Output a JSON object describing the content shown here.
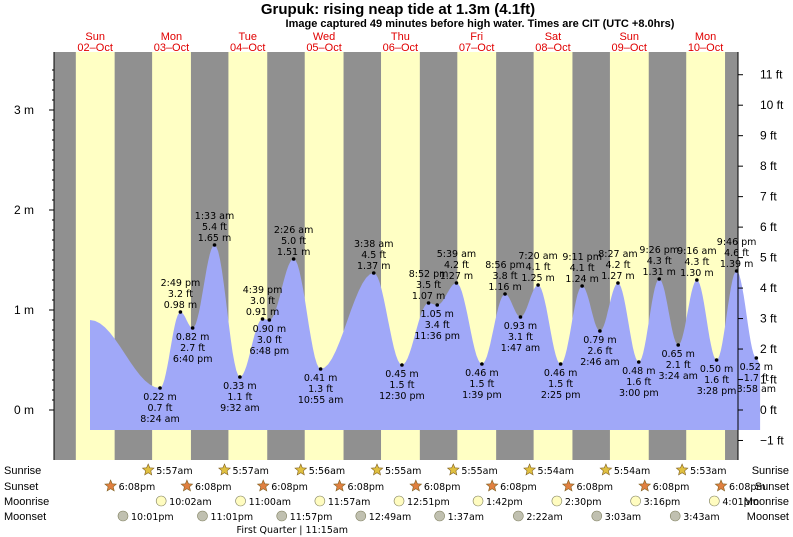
{
  "chart_data": {
    "type": "area",
    "title": "Grupuk: rising  neap tide at 1.3m (4.1ft)",
    "subtitle": "Image captured 49 minutes before high water. Times are CIT (UTC +8.0hrs)",
    "y_left_unit": "m",
    "y_left_ticks": [
      "0 m",
      "1 m",
      "2 m",
      "3 m"
    ],
    "y_right_ticks": [
      "−1 ft",
      "0 ft",
      "1 ft",
      "2 ft",
      "3 ft",
      "4 ft",
      "5 ft",
      "6 ft",
      "7 ft",
      "8 ft",
      "9 ft",
      "10 ft",
      "11 ft"
    ],
    "days": [
      {
        "name": "Sun",
        "date": "02–Oct"
      },
      {
        "name": "Mon",
        "date": "03–Oct"
      },
      {
        "name": "Tue",
        "date": "04–Oct"
      },
      {
        "name": "Wed",
        "date": "05–Oct"
      },
      {
        "name": "Thu",
        "date": "06–Oct"
      },
      {
        "name": "Fri",
        "date": "07–Oct"
      },
      {
        "name": "Sat",
        "date": "08–Oct"
      },
      {
        "name": "Sun",
        "date": "09–Oct"
      },
      {
        "name": "Mon",
        "date": "10–Oct"
      }
    ],
    "tides": [
      {
        "time": "8:24 am",
        "m": "0.22 m",
        "ft": "0.7 ft",
        "h": 0.22,
        "day": 1,
        "hour": 8.4,
        "type": "low"
      },
      {
        "time": "2:49 pm",
        "m": "0.98 m",
        "ft": "3.2 ft",
        "h": 0.98,
        "day": 1,
        "hour": 14.82,
        "type": "high"
      },
      {
        "time": "6:40 pm",
        "m": "0.82 m",
        "ft": "2.7 ft",
        "h": 0.82,
        "day": 1,
        "hour": 18.67,
        "type": "low"
      },
      {
        "time": "1:33 am",
        "m": "1.65 m",
        "ft": "5.4 ft",
        "h": 1.65,
        "day": 2,
        "hour": 1.55,
        "type": "high"
      },
      {
        "time": "9:32 am",
        "m": "0.33 m",
        "ft": "1.1 ft",
        "h": 0.33,
        "day": 2,
        "hour": 9.53,
        "type": "low"
      },
      {
        "time": "4:39 pm",
        "m": "0.91 m",
        "ft": "3.0 ft",
        "h": 0.91,
        "day": 2,
        "hour": 16.65,
        "type": "high"
      },
      {
        "time": "6:48 pm",
        "m": "0.90 m",
        "ft": "3.0 ft",
        "h": 0.9,
        "day": 2,
        "hour": 18.8,
        "type": "low"
      },
      {
        "time": "2:26 am",
        "m": "1.51 m",
        "ft": "5.0 ft",
        "h": 1.51,
        "day": 3,
        "hour": 2.43,
        "type": "high"
      },
      {
        "time": "10:55 am",
        "m": "0.41 m",
        "ft": "1.3 ft",
        "h": 0.41,
        "day": 3,
        "hour": 10.92,
        "type": "low"
      },
      {
        "time": "3:38 am",
        "m": "1.37 m",
        "ft": "4.5 ft",
        "h": 1.37,
        "day": 4,
        "hour": 3.63,
        "type": "high"
      },
      {
        "time": "12:30 pm",
        "m": "0.45 m",
        "ft": "1.5 ft",
        "h": 0.45,
        "day": 4,
        "hour": 12.5,
        "type": "low"
      },
      {
        "time": "8:52 pm",
        "m": "1.07 m",
        "ft": "3.5 ft",
        "h": 1.07,
        "day": 4,
        "hour": 20.87,
        "type": "high"
      },
      {
        "time": "11:36 pm",
        "m": "1.05 m",
        "ft": "3.4 ft",
        "h": 1.05,
        "day": 4,
        "hour": 23.6,
        "type": "low"
      },
      {
        "time": "5:39 am",
        "m": "1.27 m",
        "ft": "4.2 ft",
        "h": 1.27,
        "day": 5,
        "hour": 5.65,
        "type": "high"
      },
      {
        "time": "1:39 pm",
        "m": "0.46 m",
        "ft": "1.5 ft",
        "h": 0.46,
        "day": 5,
        "hour": 13.65,
        "type": "low"
      },
      {
        "time": "8:56 pm",
        "m": "1.16 m",
        "ft": "3.8 ft",
        "h": 1.16,
        "day": 5,
        "hour": 20.93,
        "type": "high"
      },
      {
        "time": "1:47 am",
        "m": "0.93 m",
        "ft": "3.1 ft",
        "h": 0.93,
        "day": 6,
        "hour": 1.78,
        "type": "low"
      },
      {
        "time": "7:20 am",
        "m": "1.25 m",
        "ft": "4.1 ft",
        "h": 1.25,
        "day": 6,
        "hour": 7.33,
        "type": "high"
      },
      {
        "time": "2:25 pm",
        "m": "0.46 m",
        "ft": "1.5 ft",
        "h": 0.46,
        "day": 6,
        "hour": 14.42,
        "type": "low"
      },
      {
        "time": "9:11 pm",
        "m": "1.24 m",
        "ft": "4.1 ft",
        "h": 1.24,
        "day": 6,
        "hour": 21.18,
        "type": "high"
      },
      {
        "time": "2:46 am",
        "m": "0.79 m",
        "ft": "2.6 ft",
        "h": 0.79,
        "day": 7,
        "hour": 2.77,
        "type": "low"
      },
      {
        "time": "8:27 am",
        "m": "1.27 m",
        "ft": "4.2 ft",
        "h": 1.27,
        "day": 7,
        "hour": 8.45,
        "type": "high"
      },
      {
        "time": "3:00 pm",
        "m": "0.48 m",
        "ft": "1.6 ft",
        "h": 0.48,
        "day": 7,
        "hour": 15.0,
        "type": "low"
      },
      {
        "time": "9:26 pm",
        "m": "1.31 m",
        "ft": "4.3 ft",
        "h": 1.31,
        "day": 7,
        "hour": 21.43,
        "type": "high"
      },
      {
        "time": "3:24 am",
        "m": "0.65 m",
        "ft": "2.1 ft",
        "h": 0.65,
        "day": 8,
        "hour": 3.4,
        "type": "low"
      },
      {
        "time": "9:16 am",
        "m": "1.30 m",
        "ft": "4.3 ft",
        "h": 1.3,
        "day": 8,
        "hour": 9.27,
        "type": "high"
      },
      {
        "time": "3:28 pm",
        "m": "0.50 m",
        "ft": "1.6 ft",
        "h": 0.5,
        "day": 8,
        "hour": 15.47,
        "type": "low"
      },
      {
        "time": "9:46 pm",
        "m": "1.39 m",
        "ft": "4.6 ft",
        "h": 1.39,
        "day": 8,
        "hour": 21.77,
        "type": "high"
      },
      {
        "time": "3:58 am",
        "m": "0.52 m",
        "ft": "1.7 ft",
        "h": 0.52,
        "day": 9,
        "hour": 3.97,
        "type": "low"
      }
    ],
    "sun_moon": {
      "row_labels": [
        "Sunrise",
        "Sunset",
        "Moonrise",
        "Moonset"
      ],
      "sunrise": [
        {
          "day": 1,
          "hour": 5.95,
          "time": "5:57am"
        },
        {
          "day": 2,
          "hour": 5.95,
          "time": "5:57am"
        },
        {
          "day": 3,
          "hour": 5.93,
          "time": "5:56am"
        },
        {
          "day": 4,
          "hour": 5.92,
          "time": "5:55am"
        },
        {
          "day": 5,
          "hour": 5.92,
          "time": "5:55am"
        },
        {
          "day": 6,
          "hour": 5.9,
          "time": "5:54am"
        },
        {
          "day": 7,
          "hour": 5.9,
          "time": "5:54am"
        },
        {
          "day": 8,
          "hour": 5.88,
          "time": "5:53am"
        }
      ],
      "sunset": [
        {
          "day": 0,
          "hour": 18.13,
          "time": "6:08pm"
        },
        {
          "day": 1,
          "hour": 18.13,
          "time": "6:08pm"
        },
        {
          "day": 2,
          "hour": 18.13,
          "time": "6:08pm"
        },
        {
          "day": 3,
          "hour": 18.13,
          "time": "6:08pm"
        },
        {
          "day": 4,
          "hour": 18.13,
          "time": "6:08pm"
        },
        {
          "day": 5,
          "hour": 18.13,
          "time": "6:08pm"
        },
        {
          "day": 6,
          "hour": 18.13,
          "time": "6:08pm"
        },
        {
          "day": 7,
          "hour": 18.13,
          "time": "6:08pm"
        },
        {
          "day": 8,
          "hour": 18.13,
          "time": "6:08pm"
        }
      ],
      "moonrise": [
        {
          "day": 1,
          "hour": 10.03,
          "time": "10:02am"
        },
        {
          "day": 2,
          "hour": 11.0,
          "time": "11:00am"
        },
        {
          "day": 3,
          "hour": 11.95,
          "time": "11:57am"
        },
        {
          "day": 4,
          "hour": 12.85,
          "time": "12:51pm"
        },
        {
          "day": 5,
          "hour": 13.7,
          "time": "1:42pm"
        },
        {
          "day": 6,
          "hour": 14.5,
          "time": "2:30pm"
        },
        {
          "day": 7,
          "hour": 15.27,
          "time": "3:16pm"
        },
        {
          "day": 8,
          "hour": 16.02,
          "time": "4:01pm"
        }
      ],
      "moonset": [
        {
          "day": 0,
          "hour": 22.02,
          "time": "10:01pm"
        },
        {
          "day": 1,
          "hour": 23.02,
          "time": "11:01pm"
        },
        {
          "day": 2,
          "hour": 23.95,
          "time": "11:57pm"
        },
        {
          "day": 4,
          "hour": 0.82,
          "time": "12:49am"
        },
        {
          "day": 5,
          "hour": 1.62,
          "time": "1:37am"
        },
        {
          "day": 6,
          "hour": 2.37,
          "time": "2:22am"
        },
        {
          "day": 7,
          "hour": 3.05,
          "time": "3:03am"
        },
        {
          "day": 8,
          "hour": 3.72,
          "time": "3:43am"
        }
      ],
      "phase_label": "First Quarter | 11:15am"
    }
  },
  "colors": {
    "water": "#a0a8f8",
    "day_band": "#ffffc4",
    "night_band": "#909090",
    "dark_grey": "#505050",
    "day_text": "#e00000",
    "sun_star": "#e0c040",
    "sunset_star": "#e08040",
    "moonrise": "#fffcc0",
    "moonset": "#c0c0b0"
  }
}
